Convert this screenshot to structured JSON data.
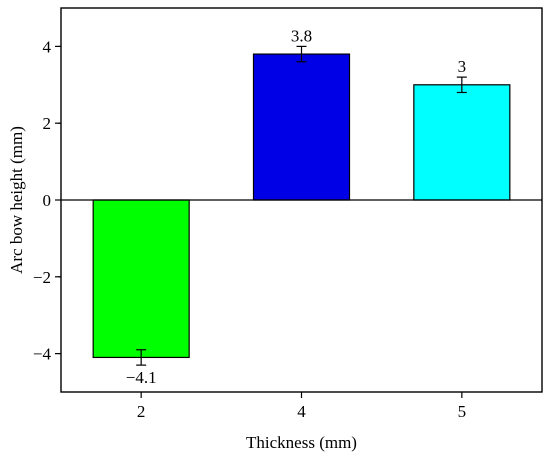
{
  "chart_data": {
    "type": "bar",
    "categories": [
      "2",
      "4",
      "5"
    ],
    "values": [
      -4.1,
      3.8,
      3.0
    ],
    "errors": [
      0.2,
      0.2,
      0.2
    ],
    "data_labels": [
      "−4.1",
      "3.8",
      "3"
    ],
    "bar_colors": [
      "#00ff00",
      "#0000e6",
      "#00ffff"
    ],
    "xlabel": "Thickness (mm)",
    "ylabel": "Arc bow height (mm)",
    "ylim": [
      -5,
      5
    ],
    "yticks": [
      4,
      2,
      0,
      -2,
      -4
    ],
    "ytick_labels": [
      "4",
      "2",
      "0",
      "−2",
      "−4"
    ],
    "grid": false,
    "legend": "none",
    "zero_line": true
  }
}
